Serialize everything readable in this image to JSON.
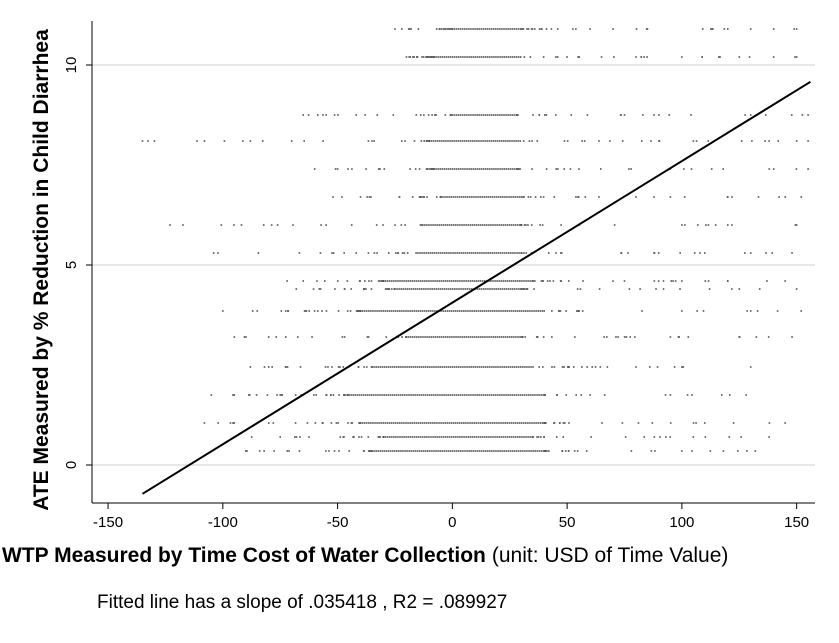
{
  "chart_data": {
    "type": "scatter",
    "xlabel_bold": "WTP Measured by Time Cost of Water Collection",
    "xlabel_normal": "(unit: USD of Time Value)",
    "ylabel": "ATE Measured by % Reduction in Child Diarrhea",
    "xlim": [
      -157,
      158
    ],
    "ylim": [
      -0.95,
      11.1
    ],
    "x_ticks": [
      -150,
      -100,
      -50,
      0,
      50,
      100,
      150
    ],
    "x_tick_labels": [
      "-150",
      "-100",
      "-50",
      "0",
      "50",
      "100",
      "150"
    ],
    "y_ticks": [
      0,
      5,
      10
    ],
    "y_tick_labels": [
      "0",
      "5",
      "10"
    ],
    "grid": "horizontal",
    "fitted_line": {
      "x": [
        -135,
        156
      ],
      "y": [
        -0.72,
        9.58
      ]
    },
    "point_rows": [
      {
        "y": 10.9,
        "x_min": -25,
        "x_max": 150,
        "dense_min": 0,
        "dense_max": 30,
        "outliers": [
          -25,
          -18,
          60,
          70,
          85,
          120,
          130,
          140,
          150
        ]
      },
      {
        "y": 10.2,
        "x_min": -20,
        "x_max": 150,
        "dense_min": -8,
        "dense_max": 30,
        "outliers": [
          -20,
          65,
          80,
          100,
          125,
          140,
          150
        ]
      },
      {
        "y": 8.75,
        "x_min": -65,
        "x_max": 155,
        "dense_min": 0,
        "dense_max": 28,
        "outliers": [
          -65,
          -55,
          75,
          90,
          104,
          130,
          155
        ]
      },
      {
        "y": 8.1,
        "x_min": -135,
        "x_max": 155,
        "dense_min": -10,
        "dense_max": 30,
        "outliers": [
          -135,
          -108,
          -88,
          -70,
          -35,
          90,
          105,
          138,
          150,
          155
        ]
      },
      {
        "y": 7.4,
        "x_min": -60,
        "x_max": 155,
        "dense_min": -8,
        "dense_max": 28,
        "outliers": [
          -60,
          -50,
          95,
          118,
          140,
          155
        ]
      },
      {
        "y": 6.7,
        "x_min": -52,
        "x_max": 152,
        "dense_min": -5,
        "dense_max": 30,
        "outliers": [
          -52,
          -40,
          95,
          120,
          145,
          152
        ]
      },
      {
        "y": 6.0,
        "x_min": -123,
        "x_max": 150,
        "dense_min": -12,
        "dense_max": 30,
        "outliers": [
          -123,
          -55,
          100,
          120,
          150
        ]
      },
      {
        "y": 5.3,
        "x_min": -104,
        "x_max": 148,
        "dense_min": -15,
        "dense_max": 30,
        "outliers": [
          -104,
          110,
          130,
          148
        ]
      },
      {
        "y": 4.6,
        "x_min": -72,
        "x_max": 145,
        "dense_min": -30,
        "dense_max": 35,
        "outliers": [
          -72,
          -65,
          75,
          100,
          120,
          145
        ]
      },
      {
        "y": 4.4,
        "x_min": -68,
        "x_max": 150,
        "dense_min": -25,
        "dense_max": 30,
        "outliers": [
          -68,
          -58,
          92,
          125,
          150
        ]
      },
      {
        "y": 3.85,
        "x_min": -100,
        "x_max": 152,
        "dense_min": -40,
        "dense_max": 40,
        "outliers": [
          -100,
          -85,
          -60,
          100,
          130,
          152
        ]
      },
      {
        "y": 3.2,
        "x_min": -95,
        "x_max": 148,
        "dense_min": -20,
        "dense_max": 30,
        "outliers": [
          -95,
          -80,
          95,
          125,
          148
        ]
      },
      {
        "y": 2.45,
        "x_min": -88,
        "x_max": 130,
        "dense_min": -35,
        "dense_max": 35,
        "outliers": [
          -88,
          -80,
          80,
          100,
          130
        ]
      },
      {
        "y": 1.75,
        "x_min": -105,
        "x_max": 128,
        "dense_min": -45,
        "dense_max": 40,
        "outliers": [
          -105,
          -95,
          -75,
          95,
          128
        ]
      },
      {
        "y": 1.05,
        "x_min": -108,
        "x_max": 145,
        "dense_min": -40,
        "dense_max": 40,
        "outliers": [
          -108,
          -95,
          -80,
          110,
          145
        ]
      },
      {
        "y": 0.7,
        "x_min": -95,
        "x_max": 138,
        "dense_min": -30,
        "dense_max": 35,
        "outliers": [
          -95,
          -75,
          88,
          105,
          138
        ]
      },
      {
        "y": 0.35,
        "x_min": -90,
        "x_max": 132,
        "dense_min": -35,
        "dense_max": 40,
        "outliers": [
          -90,
          -82,
          78,
          100,
          132
        ]
      }
    ]
  },
  "note": "Fitted line has a slope of .035418 , R2 = .089927"
}
